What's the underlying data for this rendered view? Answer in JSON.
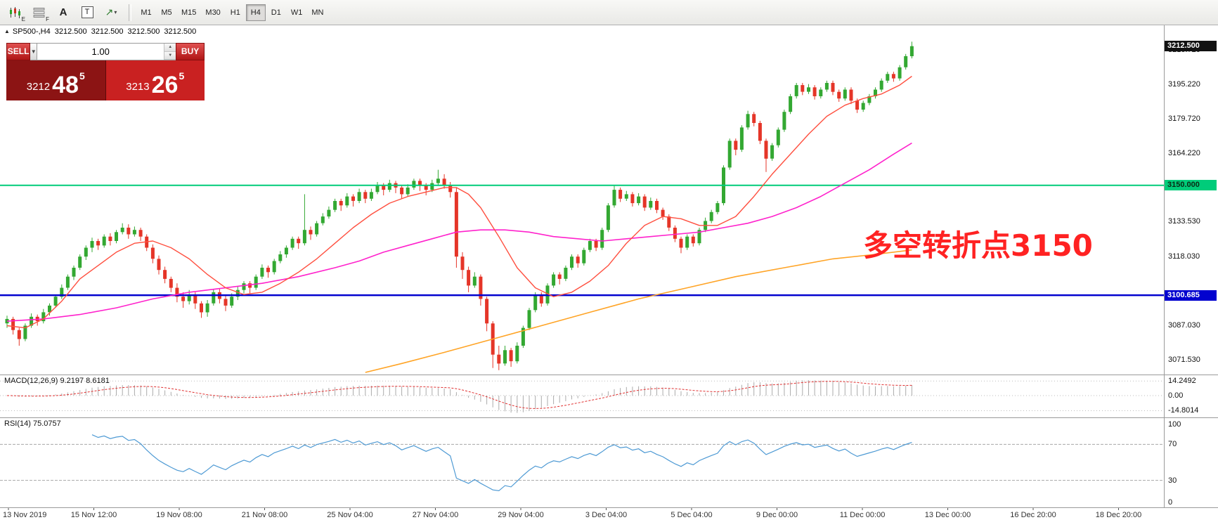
{
  "toolbar": {
    "chart_icon_sub": "E",
    "list_icon_sub": "F",
    "text_icon_glyph": "A",
    "textbox_icon_glyph": "T",
    "arrow_icon_glyph": "↗",
    "arrow_caret_glyph": "▾",
    "timeframes": [
      "M1",
      "M5",
      "M15",
      "M30",
      "H1",
      "H4",
      "D1",
      "W1",
      "MN"
    ],
    "active_timeframe": "H4"
  },
  "chart_header": {
    "collapse_icon": "▲",
    "symbol_period": "SP500-,H4",
    "open": "3212.500",
    "high": "3212.500",
    "low": "3212.500",
    "close": "3212.500"
  },
  "trade_panel": {
    "sell_label": "SELL",
    "buy_label": "BUY",
    "volume": "1.00",
    "dropdown_caret": "▼",
    "spinner_up": "▲",
    "spinner_down": "▼",
    "bid": {
      "prefix": "3212",
      "big": "48",
      "sup": "5"
    },
    "ask": {
      "prefix": "3213",
      "big": "26",
      "sup": "5"
    }
  },
  "annotation": {
    "text": "多空转折点3150",
    "color": "#ff2222"
  },
  "price_axis": {
    "ticks": [
      {
        "label": "3210.720",
        "value": 3210.72
      },
      {
        "label": "3195.220",
        "value": 3195.22
      },
      {
        "label": "3179.720",
        "value": 3179.72
      },
      {
        "label": "3164.220",
        "value": 3164.22
      },
      {
        "label": "3133.530",
        "value": 3133.53
      },
      {
        "label": "3118.030",
        "value": 3118.03
      },
      {
        "label": "3087.030",
        "value": 3087.03
      },
      {
        "label": "3071.530",
        "value": 3071.53
      }
    ],
    "badges": [
      {
        "label": "3212.500",
        "value": 3212.5,
        "bg": "#111111",
        "fg": "#ffffff"
      },
      {
        "label": "3150.000",
        "value": 3150.0,
        "bg": "#00cc7a",
        "fg": "#0a2a14"
      },
      {
        "label": "3100.685",
        "value": 3100.685,
        "bg": "#0202cf",
        "fg": "#ffffff"
      }
    ]
  },
  "macd_axis": {
    "labels": [
      "14.2492",
      "0.00",
      "-14.8014"
    ],
    "values": [
      14.2492,
      0,
      -14.8014
    ]
  },
  "rsi_axis": {
    "labels": [
      "100",
      "70",
      "30",
      "0"
    ],
    "values": [
      100,
      70,
      30,
      0
    ]
  },
  "indicators": {
    "macd_label": "MACD(12,26,9) 9.2197 8.6181",
    "rsi_label": "RSI(14) 75.0757",
    "macd_params": [
      12,
      26,
      9
    ],
    "macd_current": 9.2197,
    "macd_signal_current": 8.6181,
    "rsi_period": 14,
    "rsi_current": 75.0757,
    "rsi_levels": [
      70,
      30
    ]
  },
  "time_axis": {
    "labels": [
      "13 Nov 2019",
      "15 Nov 12:00",
      "19 Nov 08:00",
      "21 Nov 08:00",
      "25 Nov 04:00",
      "27 Nov 04:00",
      "29 Nov 04:00",
      "3 Dec 04:00",
      "5 Dec 04:00",
      "9 Dec 00:00",
      "11 Dec 00:00",
      "13 Dec 00:00",
      "16 Dec 20:00",
      "18 Dec 20:00"
    ],
    "first_label_align": "left"
  },
  "chart_data": {
    "type": "candlestick",
    "symbol": "SP500-",
    "timeframe": "H4",
    "ohlc_current": [
      3212.5,
      3212.5,
      3212.5,
      3212.5
    ],
    "price_axis_range": [
      3066.0,
      3216.5
    ],
    "colors": {
      "up": "#33a832",
      "down": "#e53528",
      "background": "#ffffff",
      "macd_hist": "#ababab",
      "macd_signal": "#e03030",
      "rsi_line": "#4e9ad4"
    },
    "hlines": [
      {
        "price": 3150.0,
        "color": "#00cc7a",
        "width": 2,
        "label": "3150.000"
      },
      {
        "price": 3100.685,
        "color": "#0202cf",
        "width": 2.5,
        "label": "3100.685"
      }
    ],
    "ma_fast": {
      "name": "fast-ma",
      "color": "#ff4f3f",
      "width": 1.4,
      "points": [
        [
          0,
          3087
        ],
        [
          3,
          3086
        ],
        [
          6,
          3090
        ],
        [
          9,
          3098
        ],
        [
          12,
          3108
        ],
        [
          15,
          3114
        ],
        [
          18,
          3120
        ],
        [
          21,
          3124
        ],
        [
          24,
          3125
        ],
        [
          27,
          3122
        ],
        [
          30,
          3117
        ],
        [
          33,
          3110
        ],
        [
          36,
          3104
        ],
        [
          39,
          3101
        ],
        [
          42,
          3102
        ],
        [
          45,
          3106
        ],
        [
          48,
          3111
        ],
        [
          51,
          3117
        ],
        [
          54,
          3124
        ],
        [
          57,
          3131
        ],
        [
          60,
          3137
        ],
        [
          63,
          3142
        ],
        [
          66,
          3145
        ],
        [
          69,
          3147
        ],
        [
          72,
          3149
        ],
        [
          74,
          3149
        ],
        [
          76,
          3146
        ],
        [
          78,
          3140
        ],
        [
          81,
          3127
        ],
        [
          84,
          3113
        ],
        [
          87,
          3104
        ],
        [
          90,
          3100
        ],
        [
          93,
          3102
        ],
        [
          96,
          3107
        ],
        [
          99,
          3114
        ],
        [
          102,
          3124
        ],
        [
          105,
          3132
        ],
        [
          108,
          3136
        ],
        [
          111,
          3135
        ],
        [
          114,
          3132
        ],
        [
          117,
          3132
        ],
        [
          120,
          3136
        ],
        [
          123,
          3145
        ],
        [
          126,
          3155
        ],
        [
          129,
          3164
        ],
        [
          132,
          3173
        ],
        [
          135,
          3181
        ],
        [
          138,
          3186
        ],
        [
          141,
          3189
        ],
        [
          144,
          3191
        ],
        [
          147,
          3195
        ],
        [
          149,
          3199
        ]
      ]
    },
    "ma_mid": {
      "name": "mid-ma",
      "color": "#ff22cc",
      "width": 1.6,
      "points": [
        [
          0,
          3089
        ],
        [
          6,
          3090
        ],
        [
          12,
          3092
        ],
        [
          18,
          3095
        ],
        [
          24,
          3099
        ],
        [
          30,
          3102
        ],
        [
          36,
          3104
        ],
        [
          42,
          3106
        ],
        [
          48,
          3109
        ],
        [
          54,
          3113
        ],
        [
          58,
          3116
        ],
        [
          62,
          3120
        ],
        [
          66,
          3123
        ],
        [
          70,
          3126
        ],
        [
          74,
          3129
        ],
        [
          78,
          3130
        ],
        [
          82,
          3130
        ],
        [
          86,
          3129
        ],
        [
          90,
          3127
        ],
        [
          94,
          3126
        ],
        [
          98,
          3125
        ],
        [
          102,
          3126
        ],
        [
          106,
          3127
        ],
        [
          110,
          3128
        ],
        [
          114,
          3129
        ],
        [
          118,
          3131
        ],
        [
          122,
          3133
        ],
        [
          126,
          3136
        ],
        [
          130,
          3140
        ],
        [
          134,
          3145
        ],
        [
          138,
          3151
        ],
        [
          142,
          3157
        ],
        [
          146,
          3164
        ],
        [
          149,
          3169
        ]
      ]
    },
    "ma_slow": {
      "name": "slow-ma",
      "color": "#ffa426",
      "width": 1.6,
      "points": [
        [
          59,
          3066
        ],
        [
          65,
          3070
        ],
        [
          72,
          3075
        ],
        [
          80,
          3081
        ],
        [
          88,
          3087
        ],
        [
          96,
          3093
        ],
        [
          104,
          3099
        ],
        [
          112,
          3104
        ],
        [
          120,
          3109
        ],
        [
          128,
          3113
        ],
        [
          136,
          3117
        ],
        [
          143,
          3119
        ],
        [
          149,
          3121
        ]
      ]
    },
    "candles": [
      [
        3088,
        3091.5,
        3086,
        3090
      ],
      [
        3090,
        3091,
        3083,
        3085
      ],
      [
        3085,
        3086,
        3078,
        3081
      ],
      [
        3081,
        3088,
        3080,
        3087
      ],
      [
        3087,
        3092.5,
        3086,
        3091
      ],
      [
        3091,
        3092,
        3087,
        3089
      ],
      [
        3089,
        3094.5,
        3088,
        3093
      ],
      [
        3093,
        3097,
        3091.5,
        3096
      ],
      [
        3096,
        3101,
        3095,
        3100
      ],
      [
        3100,
        3105.5,
        3099,
        3104
      ],
      [
        3104,
        3110,
        3103,
        3109
      ],
      [
        3109,
        3114,
        3107.5,
        3113
      ],
      [
        3113,
        3119,
        3112,
        3118
      ],
      [
        3118,
        3123,
        3116.5,
        3122
      ],
      [
        3122,
        3126.5,
        3120,
        3125
      ],
      [
        3125,
        3126,
        3121,
        3123
      ],
      [
        3123,
        3128,
        3122,
        3127
      ],
      [
        3127,
        3128.5,
        3123,
        3125
      ],
      [
        3125,
        3130,
        3124,
        3129
      ],
      [
        3129,
        3133,
        3128,
        3131
      ],
      [
        3131,
        3132.5,
        3126,
        3128
      ],
      [
        3128,
        3131.5,
        3127,
        3130
      ],
      [
        3130,
        3131,
        3125,
        3127
      ],
      [
        3127,
        3128,
        3120.5,
        3122
      ],
      [
        3122,
        3123.5,
        3115,
        3117
      ],
      [
        3117,
        3118.5,
        3110,
        3112
      ],
      [
        3112,
        3113.5,
        3106,
        3108
      ],
      [
        3108,
        3109,
        3102,
        3104
      ],
      [
        3104,
        3106,
        3097.5,
        3100
      ],
      [
        3100,
        3102,
        3095,
        3098
      ],
      [
        3098,
        3103,
        3096.5,
        3101
      ],
      [
        3101,
        3102,
        3094.5,
        3097
      ],
      [
        3097,
        3098,
        3090.5,
        3093
      ],
      [
        3093,
        3098.5,
        3091,
        3097
      ],
      [
        3097,
        3103.5,
        3096,
        3102
      ],
      [
        3102,
        3103.5,
        3097,
        3099
      ],
      [
        3099,
        3100.5,
        3093.5,
        3096
      ],
      [
        3096,
        3101.5,
        3095,
        3100
      ],
      [
        3100,
        3104.5,
        3098.5,
        3103
      ],
      [
        3103,
        3107,
        3101.5,
        3106
      ],
      [
        3106,
        3107,
        3101.5,
        3104
      ],
      [
        3104,
        3110,
        3103,
        3109
      ],
      [
        3109,
        3114.5,
        3108,
        3113
      ],
      [
        3113,
        3114,
        3108.5,
        3111
      ],
      [
        3111,
        3117,
        3110,
        3116
      ],
      [
        3116,
        3120.5,
        3115,
        3119
      ],
      [
        3119,
        3123,
        3117.5,
        3122
      ],
      [
        3122,
        3127,
        3121,
        3126
      ],
      [
        3126,
        3127,
        3121.5,
        3124
      ],
      [
        3124,
        3146,
        3123,
        3130
      ],
      [
        3130,
        3131.5,
        3125.5,
        3128
      ],
      [
        3128,
        3134,
        3127,
        3133
      ],
      [
        3133,
        3137.5,
        3132,
        3136
      ],
      [
        3136,
        3140.5,
        3135,
        3139
      ],
      [
        3139,
        3144,
        3138,
        3143
      ],
      [
        3143,
        3144,
        3138.5,
        3141
      ],
      [
        3141,
        3146.5,
        3140,
        3145
      ],
      [
        3145,
        3146,
        3140.5,
        3143
      ],
      [
        3143,
        3148.5,
        3142,
        3147
      ],
      [
        3147,
        3148,
        3142,
        3144
      ],
      [
        3144,
        3148.5,
        3143,
        3147
      ],
      [
        3147,
        3151.5,
        3146,
        3150
      ],
      [
        3150,
        3151,
        3145.5,
        3148
      ],
      [
        3148,
        3152.5,
        3147,
        3151
      ],
      [
        3151,
        3152,
        3146.5,
        3149
      ],
      [
        3149,
        3150,
        3144,
        3146
      ],
      [
        3146,
        3150.5,
        3145,
        3149
      ],
      [
        3149,
        3153,
        3148,
        3152
      ],
      [
        3152,
        3153,
        3147.5,
        3150
      ],
      [
        3150,
        3151,
        3145.5,
        3148
      ],
      [
        3148,
        3152.5,
        3147,
        3151
      ],
      [
        3151,
        3157,
        3150,
        3153
      ],
      [
        3153,
        3155,
        3148.5,
        3150
      ],
      [
        3150,
        3151.5,
        3144.5,
        3147
      ],
      [
        3147,
        3149,
        3113,
        3118
      ],
      [
        3118,
        3120,
        3108,
        3112
      ],
      [
        3112,
        3113.5,
        3102,
        3105
      ],
      [
        3105,
        3111,
        3104,
        3109
      ],
      [
        3109,
        3110,
        3096,
        3099
      ],
      [
        3099,
        3100,
        3084.5,
        3088
      ],
      [
        3088,
        3089,
        3068,
        3074
      ],
      [
        3074,
        3078,
        3067,
        3070
      ],
      [
        3070,
        3078,
        3069,
        3076
      ],
      [
        3076,
        3077,
        3068.5,
        3071
      ],
      [
        3071,
        3079.5,
        3070,
        3078
      ],
      [
        3078,
        3087,
        3077,
        3086
      ],
      [
        3086,
        3095,
        3085,
        3094
      ],
      [
        3094,
        3102,
        3093,
        3101
      ],
      [
        3101,
        3102,
        3095.5,
        3097
      ],
      [
        3097,
        3106,
        3096,
        3105
      ],
      [
        3105,
        3111,
        3104,
        3110
      ],
      [
        3110,
        3111,
        3105.5,
        3108
      ],
      [
        3108,
        3114,
        3107,
        3113
      ],
      [
        3113,
        3119,
        3112,
        3118
      ],
      [
        3118,
        3119,
        3113,
        3115
      ],
      [
        3115,
        3122,
        3114,
        3121
      ],
      [
        3121,
        3126,
        3120,
        3125
      ],
      [
        3125,
        3126,
        3120.5,
        3122
      ],
      [
        3122,
        3131,
        3121,
        3130
      ],
      [
        3130,
        3142,
        3129,
        3141
      ],
      [
        3141,
        3150,
        3140,
        3148
      ],
      [
        3148,
        3149,
        3142.5,
        3144
      ],
      [
        3144,
        3147.5,
        3143,
        3146
      ],
      [
        3146,
        3147,
        3140.5,
        3142
      ],
      [
        3142,
        3146.5,
        3141,
        3145
      ],
      [
        3145,
        3146,
        3138.5,
        3140
      ],
      [
        3140,
        3144.5,
        3139,
        3143
      ],
      [
        3143,
        3144,
        3137.5,
        3139
      ],
      [
        3139,
        3140,
        3134.5,
        3136
      ],
      [
        3136,
        3137,
        3129.5,
        3131
      ],
      [
        3131,
        3132,
        3124.5,
        3126
      ],
      [
        3126,
        3127,
        3119.5,
        3122
      ],
      [
        3122,
        3128,
        3121,
        3127
      ],
      [
        3127,
        3128,
        3122.5,
        3124
      ],
      [
        3124,
        3131,
        3123,
        3130
      ],
      [
        3130,
        3135.5,
        3129,
        3134
      ],
      [
        3134,
        3139,
        3133,
        3138
      ],
      [
        3138,
        3143,
        3137,
        3142
      ],
      [
        3142,
        3159,
        3141,
        3158
      ],
      [
        3158,
        3171,
        3157,
        3170
      ],
      [
        3170,
        3171,
        3163.5,
        3166
      ],
      [
        3166,
        3177,
        3165,
        3176
      ],
      [
        3176,
        3183.5,
        3175,
        3182
      ],
      [
        3182,
        3183,
        3176.5,
        3178
      ],
      [
        3178,
        3179,
        3168.5,
        3170
      ],
      [
        3170,
        3171,
        3156,
        3162
      ],
      [
        3162,
        3169,
        3161,
        3168
      ],
      [
        3168,
        3176,
        3167,
        3175
      ],
      [
        3175,
        3184,
        3174,
        3183
      ],
      [
        3183,
        3191,
        3182,
        3190
      ],
      [
        3190,
        3196,
        3189,
        3195
      ],
      [
        3195,
        3196,
        3190.5,
        3192
      ],
      [
        3192,
        3195.5,
        3191,
        3194
      ],
      [
        3194,
        3195,
        3188.5,
        3190
      ],
      [
        3190,
        3194,
        3189,
        3193
      ],
      [
        3193,
        3197,
        3192,
        3196
      ],
      [
        3196,
        3197,
        3190.5,
        3192
      ],
      [
        3192,
        3193,
        3187.5,
        3189
      ],
      [
        3189,
        3194,
        3188,
        3193
      ],
      [
        3193,
        3194,
        3186.5,
        3188
      ],
      [
        3188,
        3189,
        3182.5,
        3184
      ],
      [
        3184,
        3188,
        3183,
        3187
      ],
      [
        3187,
        3191,
        3186,
        3190
      ],
      [
        3190,
        3194,
        3189,
        3193
      ],
      [
        3193,
        3198,
        3192,
        3197
      ],
      [
        3197,
        3201,
        3196,
        3200
      ],
      [
        3200,
        3201,
        3196.5,
        3198
      ],
      [
        3198,
        3204,
        3197,
        3203
      ],
      [
        3203,
        3209,
        3202,
        3208
      ],
      [
        3208,
        3214.5,
        3207,
        3212.5
      ]
    ]
  }
}
